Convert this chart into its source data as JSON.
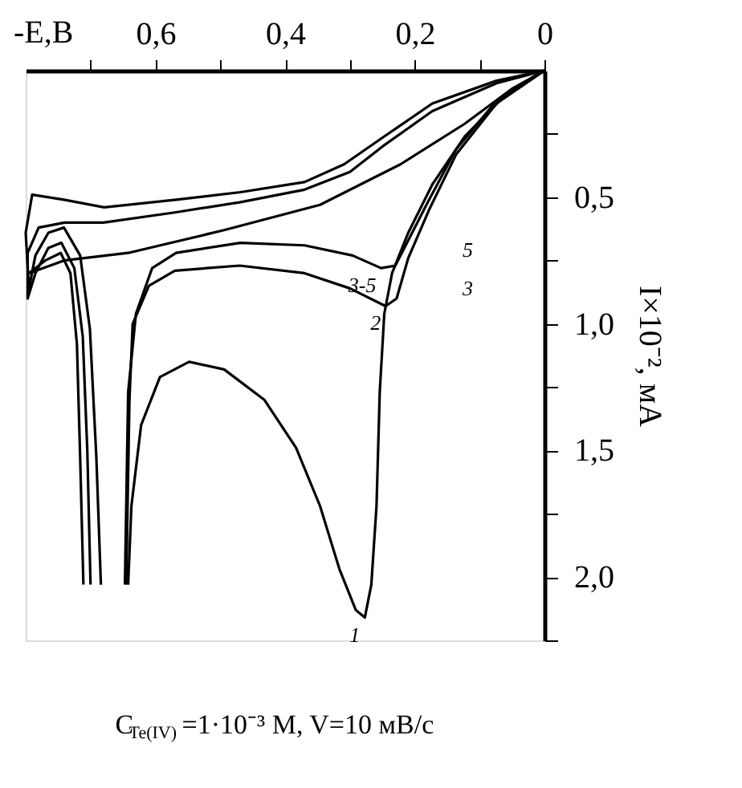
{
  "chart_data": {
    "type": "line",
    "xlabel": "-E,B",
    "ylabel": "I×10⁻², мА",
    "subtitle": "C$_{Te(IV)}$=1·10⁻³ M, V=10 мВ/с",
    "xlim": [
      0.8,
      0
    ],
    "ylim": [
      2.25,
      0
    ],
    "xticks": [
      {
        "value": 0.7,
        "label": null
      },
      {
        "value": 0.6,
        "label": "0,6"
      },
      {
        "value": 0.5,
        "label": null
      },
      {
        "value": 0.4,
        "label": "0,4"
      },
      {
        "value": 0.3,
        "label": null
      },
      {
        "value": 0.2,
        "label": "0,2"
      },
      {
        "value": 0.1,
        "label": null
      },
      0
    ],
    "yticks": [
      {
        "value": 0.25,
        "label": null
      },
      {
        "value": 0.5,
        "label": "0,5"
      },
      {
        "value": 0.75,
        "label": null
      },
      {
        "value": 1.0,
        "label": "1,0"
      },
      {
        "value": 1.25,
        "label": null
      },
      {
        "value": 1.5,
        "label": "1,5"
      },
      {
        "value": 1.75,
        "label": null
      },
      {
        "value": 2.0,
        "label": "2,0"
      },
      {
        "value": 2.25,
        "label": null
      }
    ],
    "grid": false,
    "marker": "none",
    "line_style": "solid",
    "series": [
      {
        "name": "1",
        "color": "#000000",
        "x": [
          0,
          0.062,
          0.123,
          0.173,
          0.21,
          0.235,
          0.247,
          0.254,
          0.259,
          0.267,
          0.277,
          0.291,
          0.316,
          0.346,
          0.383,
          0.432,
          0.494,
          0.548,
          0.593,
          0.622,
          0.637,
          0.642,
          0.68,
          0.711,
          0.716,
          0.721,
          0.731,
          0.746,
          0.77,
          0.795,
          0.741,
          0.642,
          0.494,
          0.346,
          0.222,
          0.123,
          0.049,
          0
        ],
        "values": [
          0,
          0.1,
          0.26,
          0.45,
          0.64,
          0.8,
          0.96,
          1.27,
          1.72,
          2.03,
          2.16,
          2.13,
          1.97,
          1.72,
          1.49,
          1.3,
          1.18,
          1.15,
          1.21,
          1.4,
          1.72,
          2.03,
          null,
          2.03,
          1.53,
          1.08,
          0.8,
          0.72,
          0.75,
          0.8,
          0.75,
          0.72,
          0.63,
          0.53,
          0.37,
          0.21,
          0.07,
          0
        ]
      },
      {
        "name": "2",
        "color": "#000000",
        "x": [
          0,
          0.074,
          0.136,
          0.178,
          0.21,
          0.228,
          0.245,
          0.3,
          0.37,
          0.47,
          0.57,
          0.61,
          0.635,
          0.64,
          0.645,
          0.67,
          0.7,
          0.705,
          0.712,
          0.725,
          0.745,
          0.765,
          0.785,
          0.797,
          0.797,
          0.78,
          0.74,
          0.68,
          0.57,
          0.47,
          0.37,
          0.3,
          0.25,
          0.173,
          0.074,
          0
        ],
        "values": [
          0,
          0.13,
          0.33,
          0.55,
          0.74,
          0.9,
          0.93,
          0.86,
          0.8,
          0.77,
          0.79,
          0.85,
          1.0,
          1.3,
          2.03,
          null,
          2.03,
          1.5,
          1.05,
          0.78,
          0.68,
          0.7,
          0.8,
          0.9,
          0.72,
          0.62,
          0.6,
          0.6,
          0.56,
          0.52,
          0.47,
          0.4,
          0.3,
          0.16,
          0.05,
          0
        ]
      },
      {
        "name": "3-5",
        "color": "#000000",
        "x": [
          0,
          0.074,
          0.136,
          0.178,
          0.21,
          0.23,
          0.252,
          0.296,
          0.37,
          0.469,
          0.568,
          0.605,
          0.63,
          0.642,
          0.647,
          0.665,
          0.684,
          0.691,
          0.701,
          0.716,
          0.741,
          0.765,
          0.785,
          0.795,
          0.8,
          0.79,
          0.741,
          0.679,
          0.568,
          0.469,
          0.37,
          0.309,
          0.247,
          0.173,
          0.074,
          0
        ],
        "values": [
          0,
          0.12,
          0.31,
          0.51,
          0.67,
          0.77,
          0.78,
          0.73,
          0.69,
          0.68,
          0.72,
          0.78,
          0.96,
          1.27,
          2.03,
          null,
          2.03,
          1.53,
          1.02,
          0.73,
          0.62,
          0.64,
          0.73,
          0.86,
          0.64,
          0.49,
          0.51,
          0.54,
          0.51,
          0.48,
          0.44,
          0.37,
          0.26,
          0.13,
          0.04,
          0
        ]
      }
    ],
    "annotations": [
      "5",
      "3"
    ]
  }
}
